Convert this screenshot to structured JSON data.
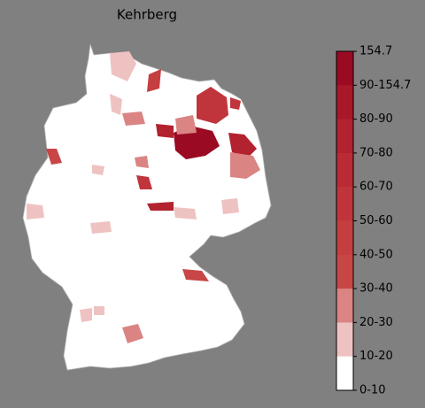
{
  "title": "Kehrberg",
  "colorbar": {
    "labels": [
      "154.7",
      "90-154.7",
      "80-90",
      "70-80",
      "60-70",
      "50-60",
      "40-50",
      "30-40",
      "20-30",
      "10-20",
      "0-10"
    ],
    "colors": [
      "#9a0a22",
      "#a81828",
      "#b2222f",
      "#ba2b35",
      "#c0353b",
      "#c53e40",
      "#c84646",
      "#da8484",
      "#efc2c2",
      "#ffffff"
    ]
  }
}
